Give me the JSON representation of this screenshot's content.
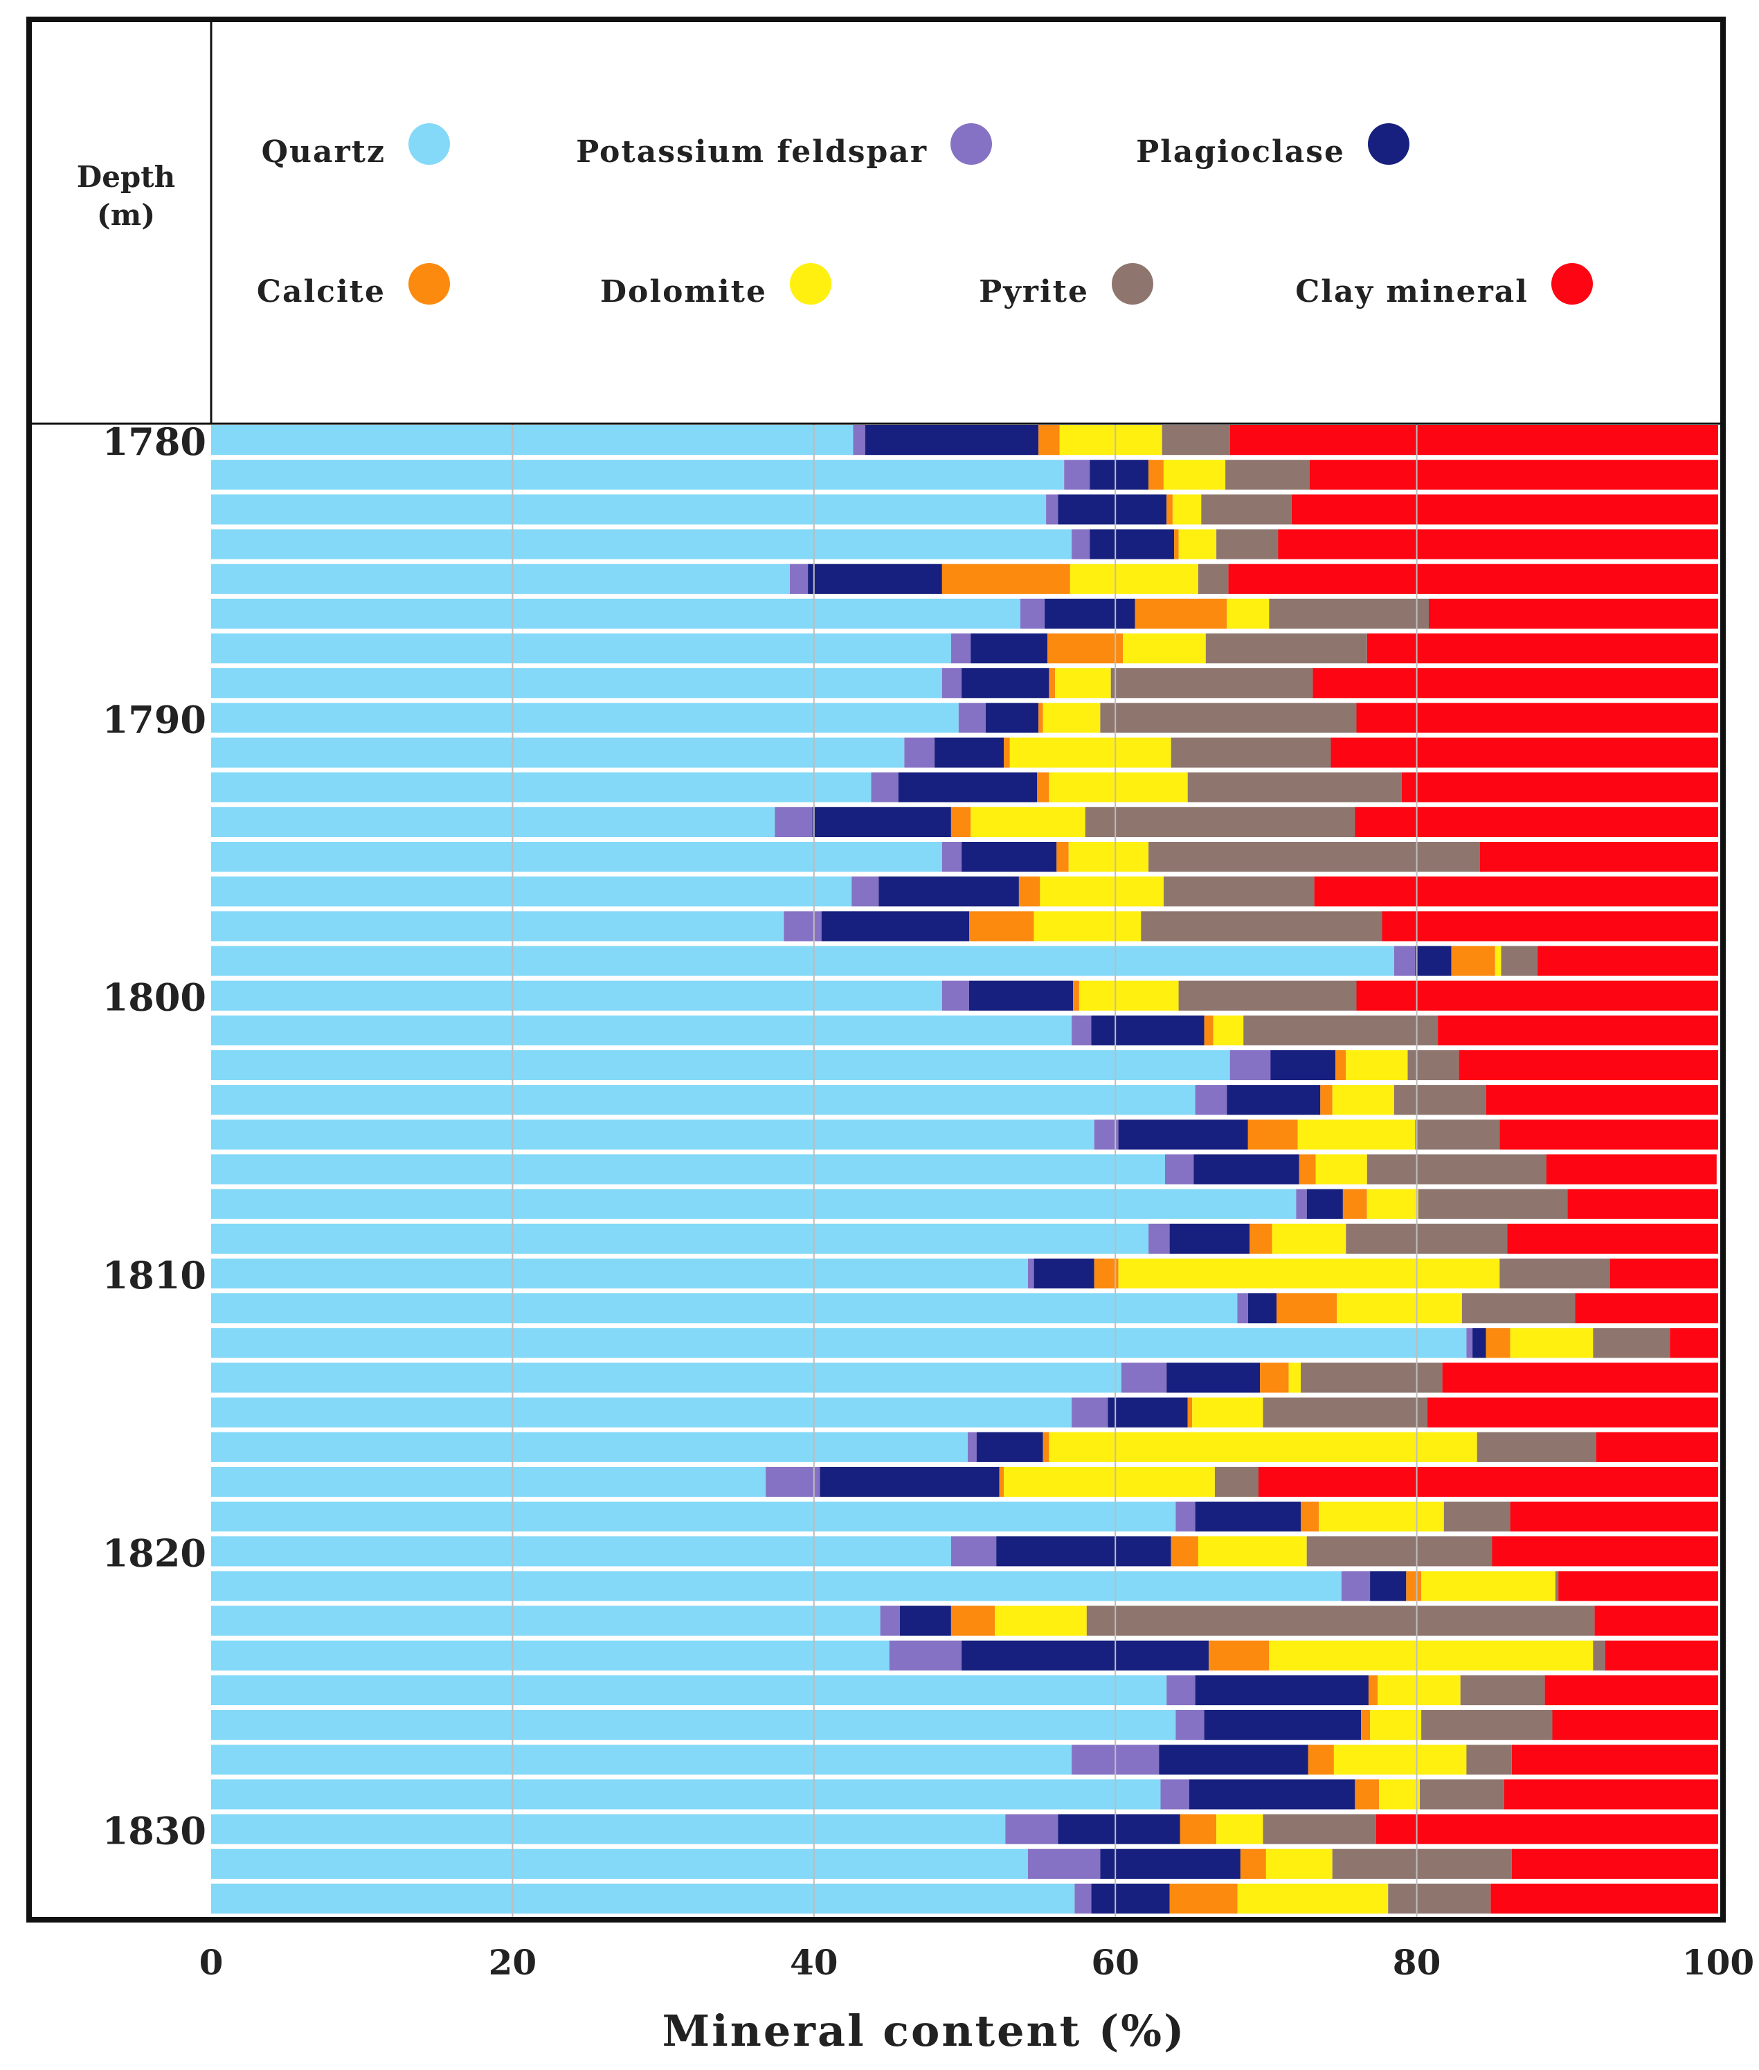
{
  "chart_data": {
    "type": "bar",
    "orientation": "horizontal",
    "stacked": true,
    "title": "",
    "xlabel": "Mineral content (%)",
    "ylabel": "Depth (m)",
    "depth_header": [
      "Depth",
      "(m)"
    ],
    "xlim": [
      0,
      100
    ],
    "x_ticks": [
      "0",
      "20",
      "40",
      "60",
      "80",
      "100"
    ],
    "x_tick_values": [
      0,
      20,
      40,
      60,
      80,
      100
    ],
    "depth_ticks": [
      "1780",
      "1790",
      "1800",
      "1810",
      "1820",
      "1830"
    ],
    "depth_tick_rows": [
      0,
      8,
      16,
      24,
      32,
      40
    ],
    "grid": true,
    "legend_position": "top",
    "series": [
      {
        "name": "Quartz",
        "color": "#83d9f7",
        "values": [
          42.6,
          56.6,
          55.4,
          57.1,
          38.4,
          53.7,
          49.1,
          48.5,
          49.6,
          46.0,
          43.8,
          37.4,
          48.5,
          42.5,
          38.0,
          78.5,
          48.5,
          57.1,
          67.6,
          65.3,
          58.6,
          63.3,
          72.0,
          62.2,
          54.2,
          68.1,
          83.3,
          60.4,
          57.1,
          50.2,
          36.8,
          64.0,
          49.1,
          75.0,
          44.4,
          45.0,
          63.4,
          64.0,
          57.1,
          63.0,
          52.7,
          54.2,
          57.3
        ]
      },
      {
        "name": "Potassium feldspar",
        "color": "#8672c4",
        "values": [
          0.8,
          1.7,
          0.8,
          1.2,
          1.2,
          1.6,
          1.3,
          1.3,
          1.8,
          2.0,
          1.8,
          2.5,
          1.3,
          1.8,
          2.5,
          1.4,
          1.8,
          1.3,
          2.7,
          2.1,
          1.6,
          1.9,
          0.7,
          1.4,
          0.4,
          0.7,
          0.4,
          3.0,
          2.4,
          0.6,
          3.6,
          1.3,
          3.0,
          1.9,
          1.3,
          4.8,
          1.9,
          1.9,
          5.8,
          1.9,
          3.5,
          4.8,
          1.1
        ]
      },
      {
        "name": "Plagioclase",
        "color": "#17207e",
        "values": [
          11.5,
          3.9,
          7.2,
          5.6,
          8.9,
          6.0,
          5.1,
          5.8,
          3.5,
          4.6,
          9.2,
          9.2,
          6.3,
          9.3,
          9.8,
          2.4,
          6.9,
          7.5,
          4.3,
          6.2,
          8.6,
          7.0,
          2.4,
          5.3,
          4.0,
          1.9,
          0.9,
          6.2,
          5.3,
          4.4,
          11.9,
          7.0,
          11.6,
          2.4,
          3.4,
          16.4,
          11.5,
          10.4,
          9.9,
          11.0,
          8.1,
          9.3,
          5.2
        ]
      },
      {
        "name": "Calcite",
        "color": "#fb8a0f",
        "values": [
          1.4,
          1.0,
          0.4,
          0.3,
          8.5,
          6.1,
          5.0,
          0.4,
          0.3,
          0.4,
          0.8,
          1.3,
          0.8,
          1.4,
          4.3,
          2.9,
          0.4,
          0.6,
          0.7,
          0.8,
          3.3,
          1.1,
          1.6,
          1.5,
          1.6,
          4.0,
          1.6,
          1.9,
          0.3,
          0.4,
          0.3,
          1.2,
          1.8,
          1.0,
          2.9,
          4.0,
          0.6,
          0.6,
          1.7,
          1.6,
          2.4,
          1.7,
          4.5
        ]
      },
      {
        "name": "Dolomite",
        "color": "#fff00f",
        "values": [
          6.8,
          4.1,
          1.9,
          2.5,
          8.5,
          2.8,
          5.5,
          3.7,
          3.8,
          10.7,
          9.2,
          7.6,
          5.3,
          8.2,
          7.1,
          0.4,
          6.6,
          2.0,
          4.1,
          4.1,
          7.8,
          3.4,
          3.4,
          4.9,
          25.3,
          8.3,
          5.5,
          0.8,
          4.7,
          28.4,
          14.0,
          8.3,
          7.2,
          8.9,
          6.1,
          21.5,
          5.5,
          3.4,
          8.8,
          2.7,
          3.1,
          4.4,
          10.0
        ]
      },
      {
        "name": "Pyrite",
        "color": "#8e766f",
        "values": [
          4.5,
          5.6,
          6.0,
          4.1,
          2.0,
          10.6,
          10.7,
          13.4,
          17.0,
          10.6,
          14.2,
          17.9,
          22.0,
          10.0,
          16.0,
          2.4,
          11.8,
          12.9,
          3.4,
          6.1,
          5.6,
          11.9,
          9.9,
          10.7,
          7.3,
          7.5,
          5.1,
          9.4,
          10.9,
          7.9,
          2.9,
          4.4,
          12.3,
          0.2,
          33.7,
          0.8,
          5.6,
          8.7,
          3.0,
          5.6,
          7.5,
          11.9,
          6.8
        ]
      },
      {
        "name": "Clay mineral",
        "color": "#fd0512",
        "values": [
          32.4,
          27.1,
          28.3,
          29.2,
          32.5,
          19.2,
          23.3,
          26.9,
          24.0,
          25.7,
          21.0,
          24.1,
          15.8,
          26.8,
          22.3,
          12.0,
          24.0,
          18.6,
          17.2,
          15.4,
          14.5,
          11.3,
          10.0,
          14.0,
          7.2,
          9.5,
          3.2,
          18.3,
          19.3,
          8.1,
          30.5,
          13.8,
          15.0,
          10.6,
          8.2,
          7.5,
          11.5,
          11.0,
          13.7,
          14.2,
          22.7,
          13.7,
          15.1
        ]
      }
    ]
  }
}
